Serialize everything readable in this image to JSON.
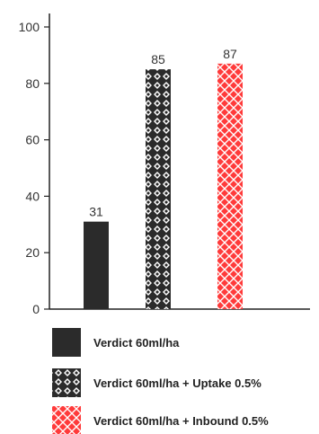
{
  "chart_data": {
    "type": "bar",
    "categories": [
      "Verdict 60ml/ha",
      "Verdict 60ml/ha + Uptake 0.5%",
      "Verdict 60ml/ha + Inbound 0.5%"
    ],
    "values": [
      31,
      85,
      87
    ],
    "data_labels": [
      "31",
      "85",
      "87"
    ],
    "title": "",
    "xlabel": "",
    "ylabel": "",
    "ylim": [
      0,
      100
    ],
    "yticks": [
      0,
      20,
      40,
      60,
      80,
      100
    ],
    "ytick_labels": [
      "0",
      "20",
      "40",
      "60",
      "80",
      "100"
    ],
    "grid": false,
    "legend_position": "bottom",
    "bar_styles": [
      "solid-dark",
      "diamond-pattern-dark",
      "crosshatch-red"
    ],
    "colors": {
      "dark": "#2b2b2b",
      "red": "#ff3b3b",
      "axis": "#222222",
      "text": "#333333"
    }
  }
}
